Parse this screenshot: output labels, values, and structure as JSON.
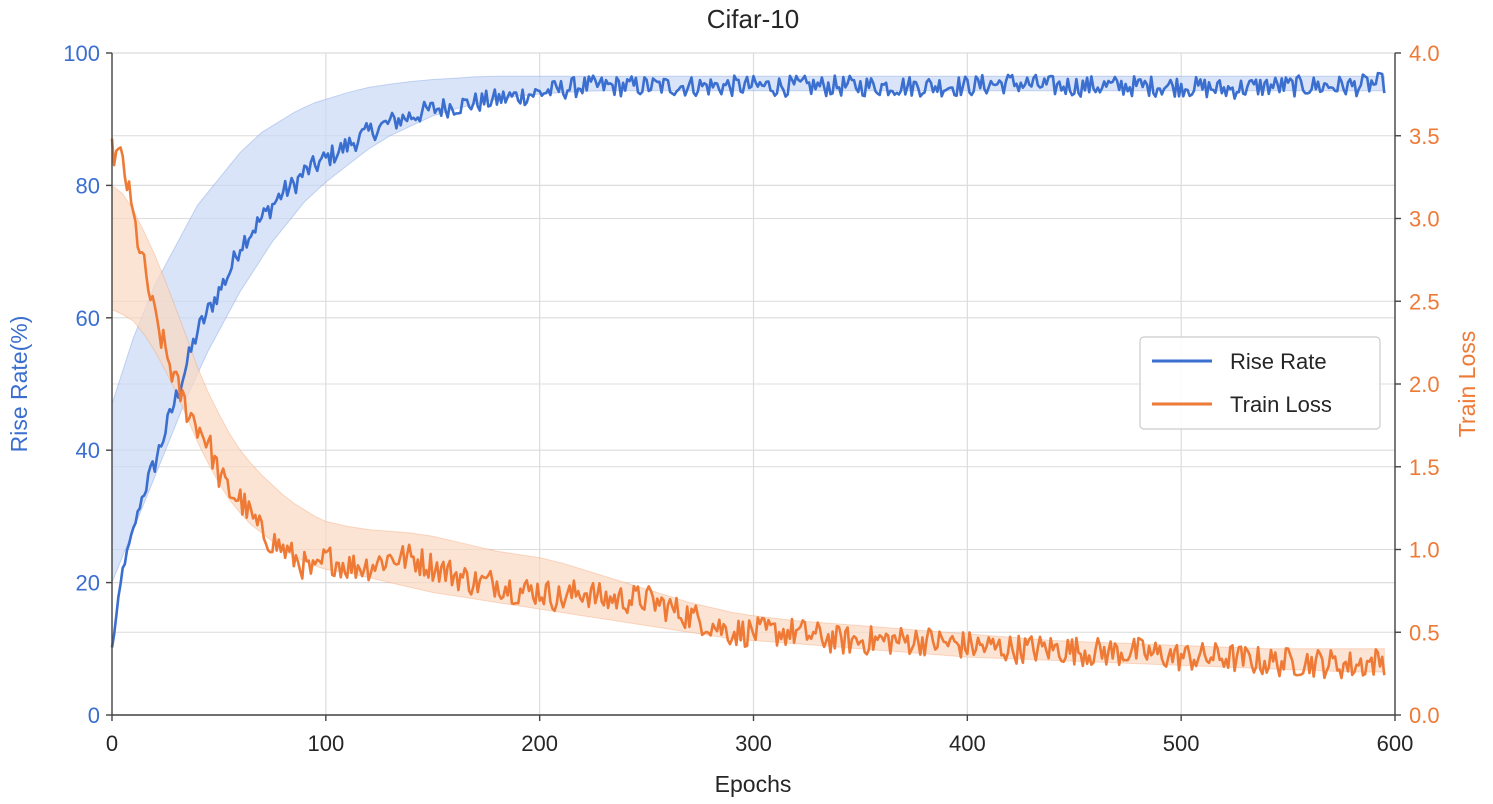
{
  "chart_data": {
    "type": "line",
    "title": "Cifar-10",
    "xlabel": "Epochs",
    "ylabel_left": "Rise Rate(%)",
    "ylabel_right": "Train Loss",
    "xlim": [
      0,
      600
    ],
    "ylim_left": [
      0,
      100
    ],
    "ylim_right": [
      0.0,
      4.0
    ],
    "x_ticks": [
      "0",
      "100",
      "200",
      "300",
      "400",
      "500",
      "600"
    ],
    "y_left_ticks": [
      "0",
      "20",
      "40",
      "60",
      "80",
      "100"
    ],
    "y_right_ticks": [
      "0.0",
      "0.5",
      "1.0",
      "1.5",
      "2.0",
      "2.5",
      "3.0",
      "3.5",
      "4.0"
    ],
    "grid": true,
    "legend_position": "center-right",
    "colors": {
      "rise": "#3a6ecf",
      "loss": "#ee7a36",
      "grid": "#dcdcdc",
      "text": "#262626"
    },
    "series": [
      {
        "name": "Rise Rate",
        "axis": "left",
        "color": "#3a6ecf",
        "band_color": "#c9d9f5",
        "x": [
          0,
          5,
          10,
          15,
          20,
          25,
          30,
          35,
          40,
          45,
          50,
          55,
          60,
          65,
          70,
          75,
          80,
          85,
          90,
          95,
          100,
          110,
          120,
          130,
          140,
          150,
          160,
          170,
          180,
          190,
          200,
          210,
          220,
          230,
          240,
          250,
          260,
          270,
          280,
          290,
          300,
          320,
          340,
          360,
          380,
          400,
          420,
          440,
          460,
          480,
          500,
          520,
          540,
          560,
          580,
          595
        ],
        "y": [
          10,
          22,
          28,
          34,
          38,
          43,
          48,
          53,
          58,
          61,
          64,
          67,
          71,
          73,
          75,
          77,
          79,
          80,
          82,
          83,
          84,
          86,
          88,
          89.5,
          90.5,
          91.5,
          92,
          92.5,
          93,
          93.5,
          94,
          94.5,
          95,
          95,
          95,
          95,
          95,
          95,
          95,
          95,
          95,
          95,
          95,
          95,
          95,
          95,
          95.5,
          95,
          95,
          95,
          95,
          94.5,
          95,
          95,
          95,
          95.5
        ],
        "band_upper": [
          47,
          52,
          57,
          61,
          65,
          68,
          71,
          74,
          77,
          79,
          81,
          83,
          85,
          86.5,
          88,
          89,
          90,
          91,
          91.8,
          92.5,
          93,
          94,
          94.8,
          95.3,
          95.7,
          96,
          96.2,
          96.4,
          96.5,
          96.5,
          96.5,
          96.5,
          96.5,
          96.5,
          96.5,
          96.5,
          96.5,
          96.5,
          96.5,
          96.5,
          96.5,
          96.5,
          96.5,
          96.5,
          96.5,
          96.5,
          96.5,
          96.5,
          96.5,
          96.5,
          96.5,
          96.5,
          96.5,
          96.5,
          96.5,
          96.5
        ],
        "band_lower": [
          20,
          24,
          28,
          32,
          36,
          40,
          44,
          48,
          51.5,
          55,
          58,
          61,
          64,
          66.5,
          69,
          71.5,
          73.5,
          75.5,
          77.5,
          79,
          80.5,
          83,
          85.5,
          87.5,
          89,
          90.5,
          91.5,
          92.3,
          93,
          93.5,
          93.8,
          94,
          94.2,
          94.3,
          94.3,
          94.3,
          94.3,
          94.3,
          94.3,
          94.3,
          94.3,
          94.3,
          94.3,
          94.3,
          94.3,
          94.3,
          94.3,
          94.3,
          94.3,
          94.3,
          94.3,
          94.3,
          94.3,
          94.3,
          94.3,
          94.3
        ]
      },
      {
        "name": "Train Loss",
        "axis": "right",
        "color": "#ee7a36",
        "band_color": "#fbd8c2",
        "x": [
          0,
          5,
          10,
          15,
          20,
          25,
          30,
          35,
          40,
          45,
          50,
          55,
          60,
          65,
          70,
          75,
          80,
          85,
          90,
          95,
          100,
          110,
          120,
          130,
          140,
          150,
          160,
          170,
          180,
          190,
          200,
          210,
          220,
          230,
          240,
          250,
          260,
          270,
          280,
          290,
          300,
          320,
          340,
          360,
          380,
          400,
          420,
          440,
          460,
          480,
          500,
          520,
          540,
          560,
          580,
          595
        ],
        "y": [
          3.4,
          3.35,
          3.0,
          2.7,
          2.4,
          2.2,
          2.0,
          1.85,
          1.75,
          1.65,
          1.45,
          1.35,
          1.3,
          1.2,
          1.1,
          1.05,
          1.0,
          0.95,
          0.9,
          0.85,
          0.95,
          0.9,
          0.9,
          0.95,
          0.95,
          0.9,
          0.85,
          0.8,
          0.8,
          0.75,
          0.75,
          0.7,
          0.75,
          0.7,
          0.7,
          0.7,
          0.65,
          0.6,
          0.55,
          0.5,
          0.5,
          0.5,
          0.45,
          0.45,
          0.45,
          0.42,
          0.4,
          0.4,
          0.38,
          0.38,
          0.35,
          0.35,
          0.32,
          0.32,
          0.3,
          0.33
        ],
        "band_upper": [
          3.2,
          3.15,
          3.05,
          2.92,
          2.78,
          2.62,
          2.45,
          2.28,
          2.1,
          1.95,
          1.82,
          1.7,
          1.6,
          1.52,
          1.45,
          1.39,
          1.33,
          1.28,
          1.24,
          1.2,
          1.17,
          1.14,
          1.12,
          1.11,
          1.1,
          1.08,
          1.05,
          1.02,
          0.99,
          0.97,
          0.95,
          0.92,
          0.88,
          0.84,
          0.8,
          0.76,
          0.72,
          0.68,
          0.65,
          0.62,
          0.6,
          0.57,
          0.55,
          0.53,
          0.51,
          0.49,
          0.47,
          0.45,
          0.44,
          0.43,
          0.42,
          0.41,
          0.4,
          0.4,
          0.4,
          0.4
        ],
        "band_lower": [
          2.45,
          2.42,
          2.38,
          2.3,
          2.2,
          2.08,
          1.95,
          1.8,
          1.65,
          1.52,
          1.4,
          1.3,
          1.22,
          1.15,
          1.1,
          1.05,
          1.0,
          0.96,
          0.93,
          0.9,
          0.88,
          0.86,
          0.83,
          0.8,
          0.77,
          0.74,
          0.72,
          0.7,
          0.68,
          0.66,
          0.64,
          0.62,
          0.6,
          0.58,
          0.56,
          0.54,
          0.52,
          0.5,
          0.48,
          0.46,
          0.45,
          0.43,
          0.41,
          0.39,
          0.37,
          0.35,
          0.34,
          0.33,
          0.32,
          0.31,
          0.3,
          0.29,
          0.28,
          0.27,
          0.26,
          0.26
        ]
      }
    ]
  }
}
